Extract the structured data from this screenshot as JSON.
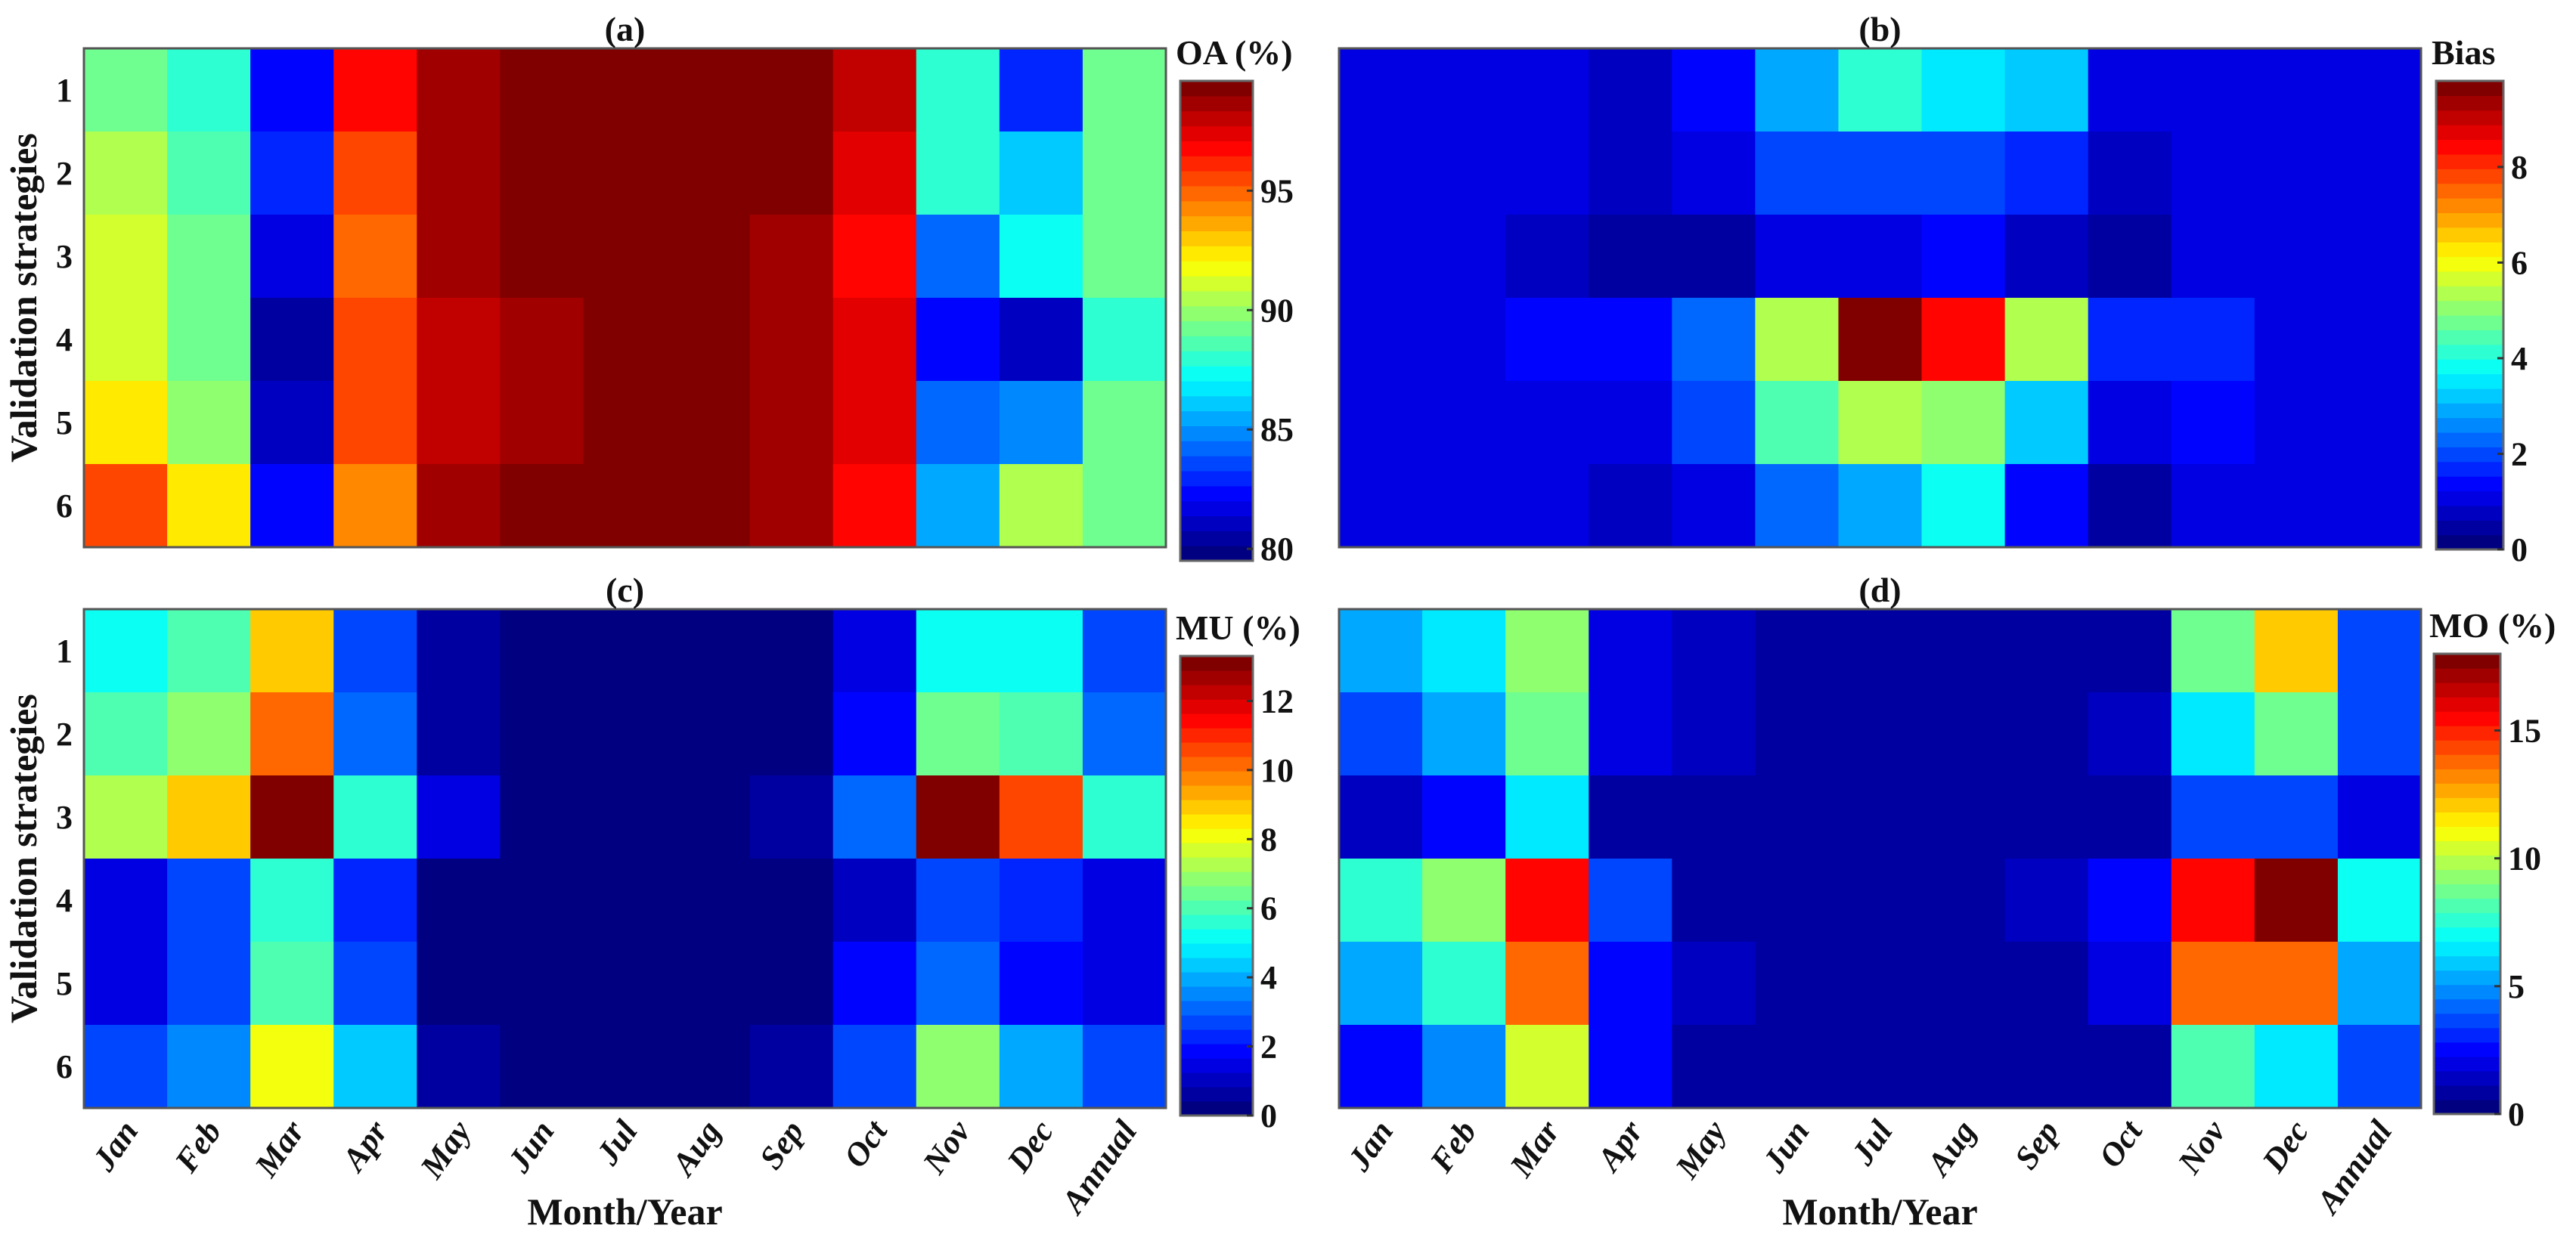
{
  "figure": {
    "xlabel": "Month/Year",
    "ylabel": "Validation strategies",
    "columns": [
      "Jan",
      "Feb",
      "Mar",
      "Apr",
      "May",
      "Jun",
      "Jul",
      "Aug",
      "Sep",
      "Oct",
      "Nov",
      "Dec",
      "Annual"
    ],
    "rows": [
      "1",
      "2",
      "3",
      "4",
      "5",
      "6"
    ],
    "colormap": "jet"
  },
  "chart_data": [
    {
      "type": "heatmap",
      "title": "(a)",
      "colorbar_label": "OA (%)",
      "clim": [
        79.5,
        99.6
      ],
      "ticks": [
        80,
        85,
        90,
        95
      ],
      "values": [
        [
          89.2,
          87.8,
          82.6,
          96.8,
          98.8,
          99.6,
          99.6,
          99.6,
          99.6,
          98.0,
          87.8,
          83.2,
          89.2
        ],
        [
          90.6,
          88.4,
          82.9,
          95.8,
          98.8,
          99.6,
          99.6,
          99.6,
          99.6,
          97.2,
          88.0,
          85.9,
          89.2
        ],
        [
          91.4,
          89.0,
          81.6,
          94.6,
          98.8,
          99.6,
          99.6,
          99.6,
          98.8,
          96.7,
          84.2,
          87.4,
          89.2
        ],
        [
          91.4,
          89.0,
          80.3,
          95.5,
          98.0,
          98.8,
          99.6,
          99.6,
          98.8,
          97.2,
          82.4,
          81.2,
          88.0
        ],
        [
          92.6,
          90.0,
          81.2,
          95.5,
          98.0,
          98.8,
          99.6,
          99.6,
          98.8,
          97.2,
          84.2,
          84.8,
          89.0
        ],
        [
          95.5,
          92.6,
          82.5,
          94.1,
          98.8,
          99.6,
          99.6,
          99.6,
          98.8,
          96.7,
          85.6,
          90.6,
          89.5
        ]
      ]
    },
    {
      "type": "heatmap",
      "title": "(b)",
      "colorbar_label": "Bias",
      "clim": [
        0,
        9.8
      ],
      "ticks": [
        0,
        2,
        4,
        6,
        8
      ],
      "values": [
        [
          1.2,
          1.2,
          1.2,
          0.9,
          1.5,
          2.8,
          4.1,
          3.4,
          3.1,
          1.2,
          1.2,
          1.2,
          1.2
        ],
        [
          1.2,
          1.2,
          1.2,
          0.7,
          1.2,
          2.1,
          2.1,
          2.1,
          1.8,
          0.9,
          1.2,
          1.2,
          1.2
        ],
        [
          1.2,
          1.2,
          0.9,
          0.6,
          0.6,
          1.2,
          1.2,
          1.4,
          0.9,
          0.6,
          1.0,
          1.0,
          1.0
        ],
        [
          1.2,
          1.2,
          1.5,
          1.5,
          2.4,
          5.3,
          9.8,
          8.3,
          5.3,
          1.8,
          1.8,
          1.2,
          1.2
        ],
        [
          1.2,
          1.2,
          1.2,
          1.2,
          2.1,
          4.3,
          5.3,
          4.9,
          3.1,
          1.2,
          1.5,
          1.2,
          1.2
        ],
        [
          1.2,
          1.2,
          1.2,
          0.9,
          1.2,
          2.4,
          2.8,
          3.9,
          1.5,
          0.6,
          1.2,
          1.2,
          1.2
        ]
      ]
    },
    {
      "type": "heatmap",
      "title": "(c)",
      "colorbar_label": "MU (%)",
      "clim": [
        0,
        13.3
      ],
      "ticks": [
        0,
        2,
        4,
        6,
        8,
        10,
        12
      ],
      "values": [
        [
          5.4,
          6.2,
          9.0,
          2.5,
          0.8,
          0.4,
          0.4,
          0.4,
          0.4,
          1.3,
          5.0,
          5.0,
          2.9
        ],
        [
          6.0,
          6.7,
          10.0,
          3.3,
          0.8,
          0.4,
          0.4,
          0.4,
          0.4,
          1.7,
          6.6,
          6.1,
          3.3
        ],
        [
          7.2,
          9.0,
          13.3,
          5.5,
          1.3,
          0.4,
          0.4,
          0.4,
          0.8,
          3.3,
          13.3,
          10.4,
          5.5
        ],
        [
          1.4,
          2.5,
          5.7,
          2.1,
          0.3,
          0.3,
          0.3,
          0.3,
          0.3,
          1.0,
          2.5,
          2.1,
          1.5
        ],
        [
          1.4,
          2.9,
          6.2,
          2.5,
          0.3,
          0.3,
          0.3,
          0.3,
          0.3,
          1.7,
          3.3,
          2.0,
          1.5
        ],
        [
          2.9,
          3.7,
          8.3,
          4.5,
          0.8,
          0.4,
          0.4,
          0.4,
          0.8,
          2.9,
          6.7,
          4.1,
          2.9
        ]
      ]
    },
    {
      "type": "heatmap",
      "title": "(d)",
      "colorbar_label": "MO (%)",
      "clim": [
        0,
        18.0
      ],
      "ticks": [
        0,
        5,
        10,
        15
      ],
      "values": [
        [
          5.6,
          6.7,
          9.0,
          1.8,
          1.3,
          0.6,
          0.6,
          0.6,
          1.1,
          1.1,
          8.5,
          12.3,
          3.9
        ],
        [
          3.9,
          5.6,
          8.5,
          1.8,
          1.3,
          0.6,
          0.6,
          0.6,
          0.6,
          1.2,
          6.2,
          8.5,
          3.4
        ],
        [
          1.5,
          2.6,
          6.2,
          0.9,
          0.6,
          0.6,
          0.6,
          0.6,
          0.6,
          0.6,
          3.4,
          3.4,
          1.8
        ],
        [
          7.6,
          9.0,
          15.3,
          3.4,
          1.1,
          0.9,
          0.9,
          0.9,
          1.5,
          2.25,
          15.6,
          18.0,
          6.8
        ],
        [
          5.6,
          7.6,
          14.0,
          2.8,
          1.5,
          0.9,
          0.6,
          0.9,
          0.9,
          1.8,
          14.0,
          14.0,
          5.6
        ],
        [
          2.8,
          4.5,
          10.5,
          2.25,
          0.9,
          0.9,
          0.6,
          0.9,
          0.9,
          0.9,
          8.0,
          6.2,
          3.4
        ]
      ]
    }
  ]
}
